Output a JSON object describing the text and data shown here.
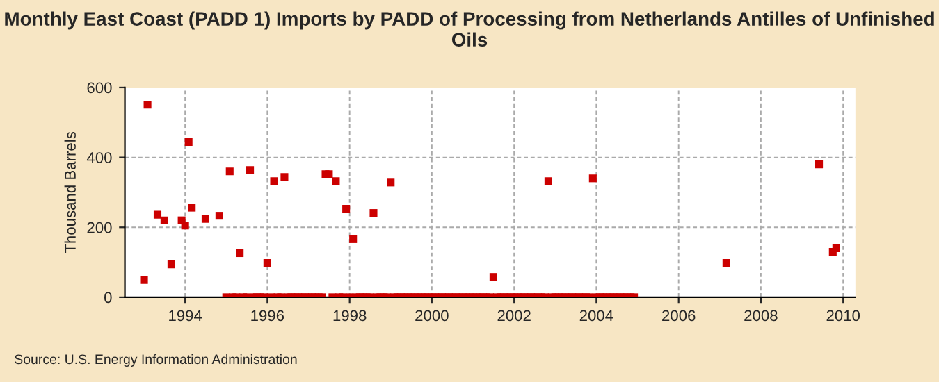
{
  "chart_data": {
    "type": "scatter",
    "title": "Monthly East Coast (PADD 1) Imports by PADD of Processing from Netherlands Antilles of Unfinished Oils",
    "ylabel": "Thousand Barrels",
    "annotations": [
      "Source: U.S. Energy Information Administration"
    ],
    "series": [
      {
        "color": "#cc0000",
        "x": [
          "1993-01",
          "1993-02",
          "1993-05",
          "1993-07",
          "1993-09",
          "1993-12",
          "1994-01",
          "1994-02",
          "1994-03",
          "1994-07",
          "1994-11",
          "1995-01",
          "1995-02",
          "1995-03",
          "1995-04",
          "1995-05",
          "1995-06",
          "1995-07",
          "1995-08",
          "1995-09",
          "1995-10",
          "1995-11",
          "1995-12",
          "1996-01",
          "1996-02",
          "1996-03",
          "1996-04",
          "1996-05",
          "1996-06",
          "1996-07",
          "1996-08",
          "1996-09",
          "1996-10",
          "1996-11",
          "1996-12",
          "1997-01",
          "1997-02",
          "1997-03",
          "1997-04",
          "1997-05",
          "1997-06",
          "1997-07",
          "1997-08",
          "1997-09",
          "1997-10",
          "1997-11",
          "1997-12",
          "1998-01",
          "1998-02",
          "1998-03",
          "1998-04",
          "1998-05",
          "1998-06",
          "1998-07",
          "1998-08",
          "1998-09",
          "1998-10",
          "1998-11",
          "1998-12",
          "1999-01",
          "1999-02",
          "1999-03",
          "1999-04",
          "1999-05",
          "1999-06",
          "1999-07",
          "1999-08",
          "1999-09",
          "1999-10",
          "1999-11",
          "1999-12",
          "2000-01",
          "2000-02",
          "2000-03",
          "2000-04",
          "2000-05",
          "2000-06",
          "2000-07",
          "2000-08",
          "2000-09",
          "2000-10",
          "2000-11",
          "2000-12",
          "2001-01",
          "2001-02",
          "2001-03",
          "2001-04",
          "2001-05",
          "2001-06",
          "2001-07",
          "2001-08",
          "2001-09",
          "2001-10",
          "2001-11",
          "2001-12",
          "2002-01",
          "2002-02",
          "2002-03",
          "2002-04",
          "2002-05",
          "2002-06",
          "2002-07",
          "2002-08",
          "2002-09",
          "2002-10",
          "2002-11",
          "2002-12",
          "2003-01",
          "2003-02",
          "2003-03",
          "2003-04",
          "2003-05",
          "2003-06",
          "2003-07",
          "2003-08",
          "2003-09",
          "2003-10",
          "2003-11",
          "2003-12",
          "2004-01",
          "2004-02",
          "2004-03",
          "2004-04",
          "2004-05",
          "2004-06",
          "2004-07",
          "2004-08",
          "2004-09",
          "2004-10",
          "2004-11",
          "2004-12",
          "2007-03",
          "2009-06",
          "2009-10",
          "2009-11"
        ],
        "values": [
          49,
          551,
          236,
          220,
          94,
          220,
          205,
          444,
          256,
          224,
          233,
          0,
          360,
          0,
          0,
          126,
          0,
          0,
          364,
          0,
          0,
          0,
          0,
          98,
          0,
          332,
          0,
          0,
          344,
          0,
          0,
          0,
          0,
          0,
          0,
          0,
          0,
          0,
          0,
          0,
          352,
          352,
          0,
          332,
          0,
          0,
          253,
          0,
          166,
          0,
          0,
          0,
          0,
          0,
          241,
          0,
          0,
          0,
          0,
          328,
          0,
          0,
          0,
          0,
          0,
          0,
          0,
          0,
          0,
          0,
          0,
          0,
          0,
          0,
          0,
          0,
          0,
          0,
          0,
          0,
          0,
          0,
          0,
          0,
          0,
          0,
          0,
          0,
          0,
          58,
          0,
          0,
          0,
          0,
          0,
          0,
          0,
          0,
          0,
          0,
          0,
          0,
          0,
          0,
          0,
          332,
          0,
          0,
          0,
          0,
          0,
          0,
          0,
          0,
          0,
          0,
          0,
          0,
          340,
          0,
          0,
          0,
          0,
          0,
          0,
          0,
          0,
          0,
          0,
          0,
          0,
          98,
          380,
          130,
          140
        ]
      }
    ],
    "marker": "square",
    "xlim": [
      "1992-07-15",
      "2010-04-20"
    ],
    "xticks": [
      {
        "value": "1994",
        "label": "1994"
      },
      {
        "value": "1996",
        "label": "1996"
      },
      {
        "value": "1998",
        "label": "1998"
      },
      {
        "value": "2000",
        "label": "2000"
      },
      {
        "value": "2002",
        "label": "2002"
      },
      {
        "value": "2004",
        "label": "2004"
      },
      {
        "value": "2006",
        "label": "2006"
      },
      {
        "value": "2008",
        "label": "2008"
      },
      {
        "value": "2010",
        "label": "2010"
      }
    ],
    "ylim": [
      0,
      600
    ],
    "yticks": [
      0,
      200,
      400,
      600
    ],
    "grid": true,
    "legend": false
  }
}
